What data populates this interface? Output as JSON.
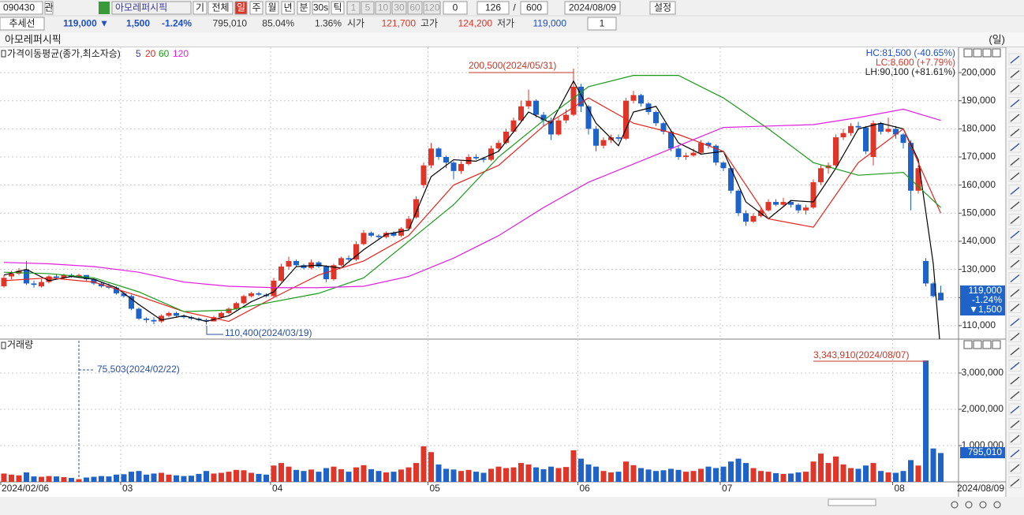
{
  "toolbar": {
    "code": "090430",
    "related": "관",
    "name": "아모레퍼시픽",
    "buttons": [
      "기",
      "전체",
      "일",
      "주",
      "월",
      "년",
      "분",
      "30s",
      "틱"
    ],
    "intervals": [
      "1",
      "5",
      "10",
      "30",
      "60",
      "120"
    ],
    "offset": "0",
    "count": "126",
    "separator": "/",
    "max": "600",
    "date": "2024/08/09",
    "settings": "설정"
  },
  "quote": {
    "trendline": "추세선",
    "price": "119,000 ▼",
    "change": "1,500",
    "change_rate": "-1.24%",
    "volume": "795,010",
    "volume_ratio": "85.04%",
    "turnover": "1.36%",
    "open_label": "시가",
    "open": "121,700",
    "high_label": "고가",
    "high": "124,200",
    "low_label": "저가",
    "low": "119,000",
    "count": "1"
  },
  "chart_data": {
    "type": "candlestick",
    "title": "아모레퍼시픽",
    "period": "(일)",
    "categories": [
      "2024/02/06",
      null,
      null,
      null,
      null,
      null,
      null,
      null,
      null,
      null,
      null,
      null,
      null,
      null,
      null,
      null,
      "03",
      null,
      null,
      null,
      null,
      null,
      null,
      null,
      null,
      null,
      null,
      null,
      null,
      null,
      null,
      null,
      null,
      null,
      null,
      null,
      "04",
      null,
      null,
      null,
      null,
      null,
      null,
      null,
      null,
      null,
      null,
      null,
      null,
      null,
      null,
      null,
      null,
      null,
      null,
      null,
      null,
      "05",
      null,
      null,
      null,
      null,
      null,
      null,
      null,
      null,
      null,
      null,
      null,
      null,
      null,
      null,
      null,
      null,
      null,
      null,
      null,
      "06",
      null,
      null,
      null,
      null,
      null,
      null,
      null,
      null,
      null,
      null,
      null,
      null,
      null,
      null,
      null,
      null,
      null,
      null,
      "07",
      null,
      null,
      null,
      null,
      null,
      null,
      null,
      null,
      null,
      null,
      null,
      null,
      null,
      null,
      null,
      null,
      null,
      null,
      null,
      null,
      null,
      null,
      "08",
      null,
      null,
      null,
      null,
      null,
      "2024/08/09"
    ],
    "open": [
      124000,
      127500,
      128500,
      130000,
      125000,
      124000,
      125500,
      127500,
      127000,
      128000,
      127500,
      128000,
      126500,
      125000,
      124000,
      123500,
      121500,
      120500,
      116000,
      112500,
      112000,
      111500,
      113500,
      114500,
      113500,
      113000,
      112500,
      112000,
      111500,
      113000,
      114500,
      116000,
      118000,
      120500,
      121500,
      121000,
      120500,
      126000,
      131000,
      133000,
      131500,
      130500,
      132500,
      131000,
      126500,
      131500,
      134000,
      133500,
      139000,
      143000,
      142000,
      141500,
      143000,
      142000,
      144500,
      148500,
      160000,
      167000,
      173000,
      170000,
      168000,
      165000,
      167500,
      170000,
      169500,
      169000,
      173000,
      175000,
      179000,
      183000,
      188000,
      190000,
      185000,
      183000,
      178000,
      183000,
      185000,
      195000,
      188000,
      180000,
      174000,
      176000,
      177000,
      176500,
      190000,
      192000,
      189000,
      186000,
      182000,
      179000,
      173000,
      170000,
      170500,
      171500,
      175000,
      174000,
      168000,
      166000,
      158000,
      150000,
      147000,
      149000,
      151000,
      154000,
      153000,
      154000,
      153000,
      151000,
      152000,
      161000,
      166000,
      167000,
      177000,
      178500,
      181000,
      180500,
      170000,
      182000,
      179000,
      180000,
      178000,
      175000,
      158000,
      133000,
      125000,
      121700
    ],
    "high": [
      128000,
      129500,
      130500,
      133000,
      126000,
      126500,
      128000,
      128500,
      128500,
      128500,
      128500,
      128000,
      127000,
      125500,
      125000,
      124000,
      122000,
      121000,
      116500,
      113000,
      113000,
      114000,
      115000,
      115000,
      114000,
      113500,
      113000,
      112500,
      113500,
      115000,
      116500,
      118500,
      121000,
      122000,
      122000,
      121500,
      127000,
      132000,
      134500,
      133500,
      132000,
      133500,
      133000,
      131500,
      132000,
      134500,
      135000,
      140000,
      144000,
      143500,
      142500,
      143500,
      143500,
      145000,
      149000,
      156000,
      168000,
      175000,
      173500,
      170500,
      168500,
      168500,
      171000,
      171000,
      170000,
      174000,
      176000,
      180000,
      184000,
      190000,
      194000,
      190500,
      186000,
      184000,
      184000,
      187000,
      200500,
      196000,
      188500,
      181000,
      177000,
      178000,
      178000,
      191000,
      193500,
      192500,
      189500,
      186500,
      182500,
      179500,
      174000,
      171500,
      173000,
      176000,
      175500,
      174500,
      168500,
      166500,
      158500,
      151000,
      150000,
      152000,
      155000,
      155000,
      155500,
      154500,
      153500,
      153000,
      162000,
      167000,
      168000,
      178000,
      180000,
      182000,
      182500,
      181000,
      183000,
      182500,
      184000,
      181000,
      178500,
      176000,
      167000,
      134000,
      125500,
      124200
    ],
    "low": [
      123500,
      126500,
      128000,
      124500,
      123500,
      123500,
      125000,
      126500,
      126500,
      127000,
      127000,
      126000,
      124500,
      123500,
      123000,
      121000,
      120000,
      115500,
      112000,
      111000,
      110500,
      111000,
      113000,
      113000,
      112500,
      112000,
      111500,
      110400,
      111500,
      112500,
      114000,
      115500,
      117500,
      120000,
      120500,
      120000,
      120000,
      125500,
      130000,
      131000,
      130000,
      130000,
      130500,
      125500,
      126000,
      131000,
      133000,
      133000,
      138500,
      141500,
      140500,
      141000,
      141500,
      141500,
      144000,
      148000,
      159000,
      166000,
      169000,
      166000,
      162000,
      164000,
      167000,
      169000,
      168000,
      168500,
      172000,
      174500,
      178500,
      182500,
      187000,
      184000,
      181000,
      176000,
      177500,
      182000,
      184500,
      186000,
      178000,
      172000,
      173000,
      175000,
      175500,
      176000,
      189000,
      188000,
      185000,
      181000,
      178000,
      172000,
      169000,
      169000,
      170000,
      171000,
      173000,
      167000,
      165000,
      157000,
      149000,
      145500,
      146500,
      148500,
      150500,
      152500,
      152500,
      152000,
      150000,
      149500,
      151500,
      160000,
      164000,
      166500,
      176000,
      177500,
      179500,
      171000,
      167000,
      178000,
      178500,
      176500,
      173000,
      151000,
      157000,
      124000,
      120000,
      119000
    ],
    "close": [
      127000,
      128500,
      129500,
      125000,
      124500,
      125500,
      127500,
      127000,
      128000,
      127500,
      128000,
      126500,
      125000,
      124000,
      123500,
      121500,
      120500,
      116000,
      112500,
      112000,
      111500,
      113500,
      114500,
      113500,
      113000,
      112500,
      112000,
      111500,
      113000,
      114500,
      116000,
      118000,
      120500,
      121500,
      121000,
      120500,
      126000,
      131000,
      133000,
      131500,
      130500,
      132500,
      131000,
      126500,
      131500,
      134000,
      133500,
      139000,
      143000,
      142000,
      141500,
      143000,
      142000,
      144500,
      148000,
      155000,
      167000,
      173000,
      170000,
      168000,
      165000,
      167500,
      170000,
      169500,
      169000,
      173000,
      175000,
      179000,
      183000,
      188000,
      190000,
      185000,
      183000,
      178000,
      183000,
      185000,
      195000,
      188000,
      180000,
      174000,
      176000,
      177000,
      176500,
      190000,
      192000,
      189000,
      186000,
      182000,
      179000,
      173000,
      170000,
      170500,
      171500,
      175000,
      174000,
      168000,
      166000,
      158000,
      150000,
      147000,
      149000,
      151000,
      154000,
      153000,
      154000,
      153000,
      151000,
      152000,
      161000,
      166000,
      167000,
      177000,
      178500,
      181000,
      180500,
      172000,
      182000,
      179000,
      180000,
      178000,
      175000,
      158000,
      166000,
      125000,
      120500,
      119000
    ],
    "volume": [
      230000,
      200000,
      180000,
      260000,
      150000,
      140000,
      160000,
      150000,
      130000,
      110000,
      75503,
      120000,
      140000,
      160000,
      150000,
      200000,
      210000,
      280000,
      300000,
      200000,
      230000,
      250000,
      200000,
      180000,
      160000,
      170000,
      220000,
      300000,
      230000,
      250000,
      280000,
      330000,
      320000,
      250000,
      220000,
      200000,
      450000,
      520000,
      420000,
      330000,
      300000,
      340000,
      280000,
      380000,
      420000,
      350000,
      280000,
      400000,
      460000,
      350000,
      300000,
      260000,
      280000,
      340000,
      400000,
      520000,
      980000,
      820000,
      480000,
      360000,
      340000,
      300000,
      330000,
      280000,
      250000,
      360000,
      420000,
      380000,
      400000,
      520000,
      480000,
      400000,
      350000,
      420000,
      380000,
      410000,
      870000,
      640000,
      480000,
      420000,
      300000,
      260000,
      280000,
      560000,
      460000,
      380000,
      340000,
      300000,
      320000,
      360000,
      330000,
      280000,
      300000,
      360000,
      420000,
      380000,
      420000,
      560000,
      640000,
      520000,
      380000,
      300000,
      280000,
      240000,
      220000,
      230000,
      260000,
      280000,
      560000,
      780000,
      520000,
      700000,
      480000,
      380000,
      360000,
      450000,
      520000,
      300000,
      260000,
      250000,
      300000,
      600000,
      450000,
      3343910,
      920000,
      795010
    ],
    "up_color": "#e0362a",
    "down_color": "#1f63c8",
    "ylim": [
      105200,
      209000
    ],
    "yticks": [
      {
        "value": 110000,
        "label": "110,000"
      },
      {
        "value": 120000,
        "label": "120,000"
      },
      {
        "value": 130000,
        "label": "130,000"
      },
      {
        "value": 140000,
        "label": "140,000"
      },
      {
        "value": 150000,
        "label": "150,000"
      },
      {
        "value": 160000,
        "label": "160,000"
      },
      {
        "value": 170000,
        "label": "170,000"
      },
      {
        "value": 180000,
        "label": "180,000"
      },
      {
        "value": 190000,
        "label": "190,000"
      },
      {
        "value": 200000,
        "label": "200,000"
      }
    ],
    "volume_title": "거래량",
    "volume_ylim": [
      0,
      3890000
    ],
    "volume_yticks": [
      {
        "value": 1000000,
        "label": "1,000,000"
      },
      {
        "value": 2000000,
        "label": "2,000,000"
      },
      {
        "value": 3000000,
        "label": "3,000,000"
      }
    ],
    "grid": true,
    "ma_title": "가격이동평균(종가,최소자승)",
    "moving_averages": [
      {
        "name": "5",
        "color": "#000000",
        "x": [
          0,
          3,
          6,
          9,
          12,
          15,
          18,
          21,
          24,
          27,
          30,
          33,
          36,
          39,
          42,
          45,
          48,
          51,
          54,
          57,
          60,
          63,
          66,
          70,
          73,
          76,
          79,
          82,
          84,
          87,
          90,
          93,
          96,
          99,
          102,
          105,
          108,
          111,
          114,
          117,
          120,
          122,
          124,
          125
        ],
        "values": [
          128000,
          130000,
          126000,
          127500,
          126500,
          123500,
          117500,
          112000,
          113500,
          111500,
          113500,
          118500,
          122000,
          131000,
          131500,
          130500,
          137000,
          142500,
          144000,
          163000,
          169000,
          168500,
          172000,
          186000,
          182000,
          197000,
          182000,
          174000,
          186000,
          188000,
          175000,
          171000,
          172000,
          154000,
          148000,
          154500,
          154000,
          166000,
          180000,
          182000,
          180000,
          169000,
          132000,
          100000
        ]
      },
      {
        "name": "20",
        "color": "#e8231c",
        "x": [
          0,
          6,
          12,
          18,
          24,
          30,
          36,
          42,
          48,
          54,
          60,
          66,
          72,
          78,
          84,
          90,
          96,
          102,
          108,
          114,
          120,
          125
        ],
        "values": [
          126000,
          127000,
          125500,
          120500,
          115000,
          111500,
          120000,
          128000,
          133000,
          142000,
          160000,
          167000,
          181000,
          191000,
          182000,
          178000,
          172000,
          148000,
          145000,
          168000,
          180000,
          150000
        ]
      },
      {
        "name": "60",
        "color": "#1a9a1a",
        "x": [
          0,
          6,
          12,
          18,
          24,
          30,
          36,
          42,
          48,
          54,
          60,
          66,
          72,
          78,
          84,
          90,
          96,
          102,
          108,
          114,
          120,
          125
        ],
        "values": [
          129000,
          128500,
          127000,
          122000,
          115000,
          115500,
          118500,
          121500,
          127000,
          140000,
          153000,
          170000,
          183000,
          195000,
          199000,
          199000,
          191000,
          180000,
          168000,
          163500,
          164500,
          152000
        ]
      },
      {
        "name": "120",
        "color": "#e020e0",
        "x": [
          0,
          6,
          12,
          18,
          24,
          30,
          36,
          42,
          48,
          54,
          60,
          66,
          72,
          78,
          84,
          90,
          96,
          102,
          108,
          114,
          120,
          125
        ],
        "values": [
          132500,
          132000,
          131000,
          129000,
          125500,
          124000,
          123500,
          123500,
          124000,
          127500,
          134000,
          142000,
          152000,
          161000,
          167500,
          174000,
          180500,
          181000,
          181500,
          184000,
          187000,
          183000
        ]
      }
    ],
    "annotations": [
      "200,500(2024/05/31)",
      "110,400(2024/03/19)"
    ],
    "volume_annotations": [
      "3,343,910(2024/08/07)",
      "75,503(2024/02/22)"
    ],
    "info": [
      "HC:81,500 (-40.65%)",
      "LC:8,600 (+7.79%)",
      "LH:90,100 (+81.61%)"
    ],
    "price_label": [
      "119,000",
      "-1.24%",
      "▼1,500"
    ],
    "volume_label": "795,010"
  }
}
